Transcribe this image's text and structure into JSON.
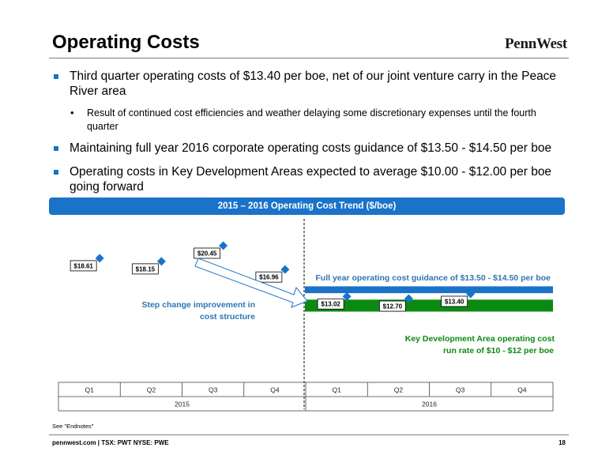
{
  "header": {
    "title": "Operating Costs",
    "logo_text": "PennWest"
  },
  "bullets": [
    {
      "text": "Third quarter operating costs of $13.40 per boe, net of our joint venture carry in the Peace River area"
    },
    {
      "text": "Result of continued cost efficiencies and weather delaying some discretionary expenses until the fourth quarter"
    },
    {
      "text": "Maintaining full year 2016 corporate operating costs guidance of $13.50 - $14.50 per boe"
    },
    {
      "text": "Operating costs in Key Development Areas expected to average $10.00 - $12.00 per boe going forward"
    }
  ],
  "colors": {
    "accent": "#1a73c8",
    "diamond": "#1a73c8",
    "guidance_band": "#1a73c8",
    "kda_band": "#0b8a12",
    "guidance_text": "#2e75b6",
    "kda_text": "#0b8a12"
  },
  "chart_data": {
    "type": "scatter",
    "title": "2015 – 2016 Operating Cost Trend ($/boe)",
    "categories": [
      "Q1",
      "Q2",
      "Q3",
      "Q4",
      "Q1",
      "Q2",
      "Q3",
      "Q4"
    ],
    "groups": [
      "2015",
      "2016"
    ],
    "series": [
      {
        "values": [
          18.61,
          18.15,
          20.45,
          16.96,
          13.02,
          12.7,
          13.4
        ],
        "labels": [
          "$18.61",
          "$18.15",
          "$20.45",
          "$16.96",
          "$13.02",
          "$12.70",
          "$13.40"
        ]
      }
    ],
    "bands": [
      {
        "from": 13.5,
        "to": 14.5,
        "label": "Full year operating cost guidance of $13.50 - $14.50 per boe"
      },
      {
        "from": 10.0,
        "to": 12.0,
        "label": "Key Development Area operating cost run rate of $10 - $12 per boe"
      }
    ],
    "annotations": [
      {
        "text": "Step change improvement in cost structure"
      }
    ],
    "ylim": [
      8,
      22
    ],
    "grid": false,
    "legend": "none"
  },
  "footer": {
    "endnote": "See \"Endnotes\"",
    "left": "pennwest.com | TSX: PWT NYSE: PWE",
    "page": "18"
  }
}
